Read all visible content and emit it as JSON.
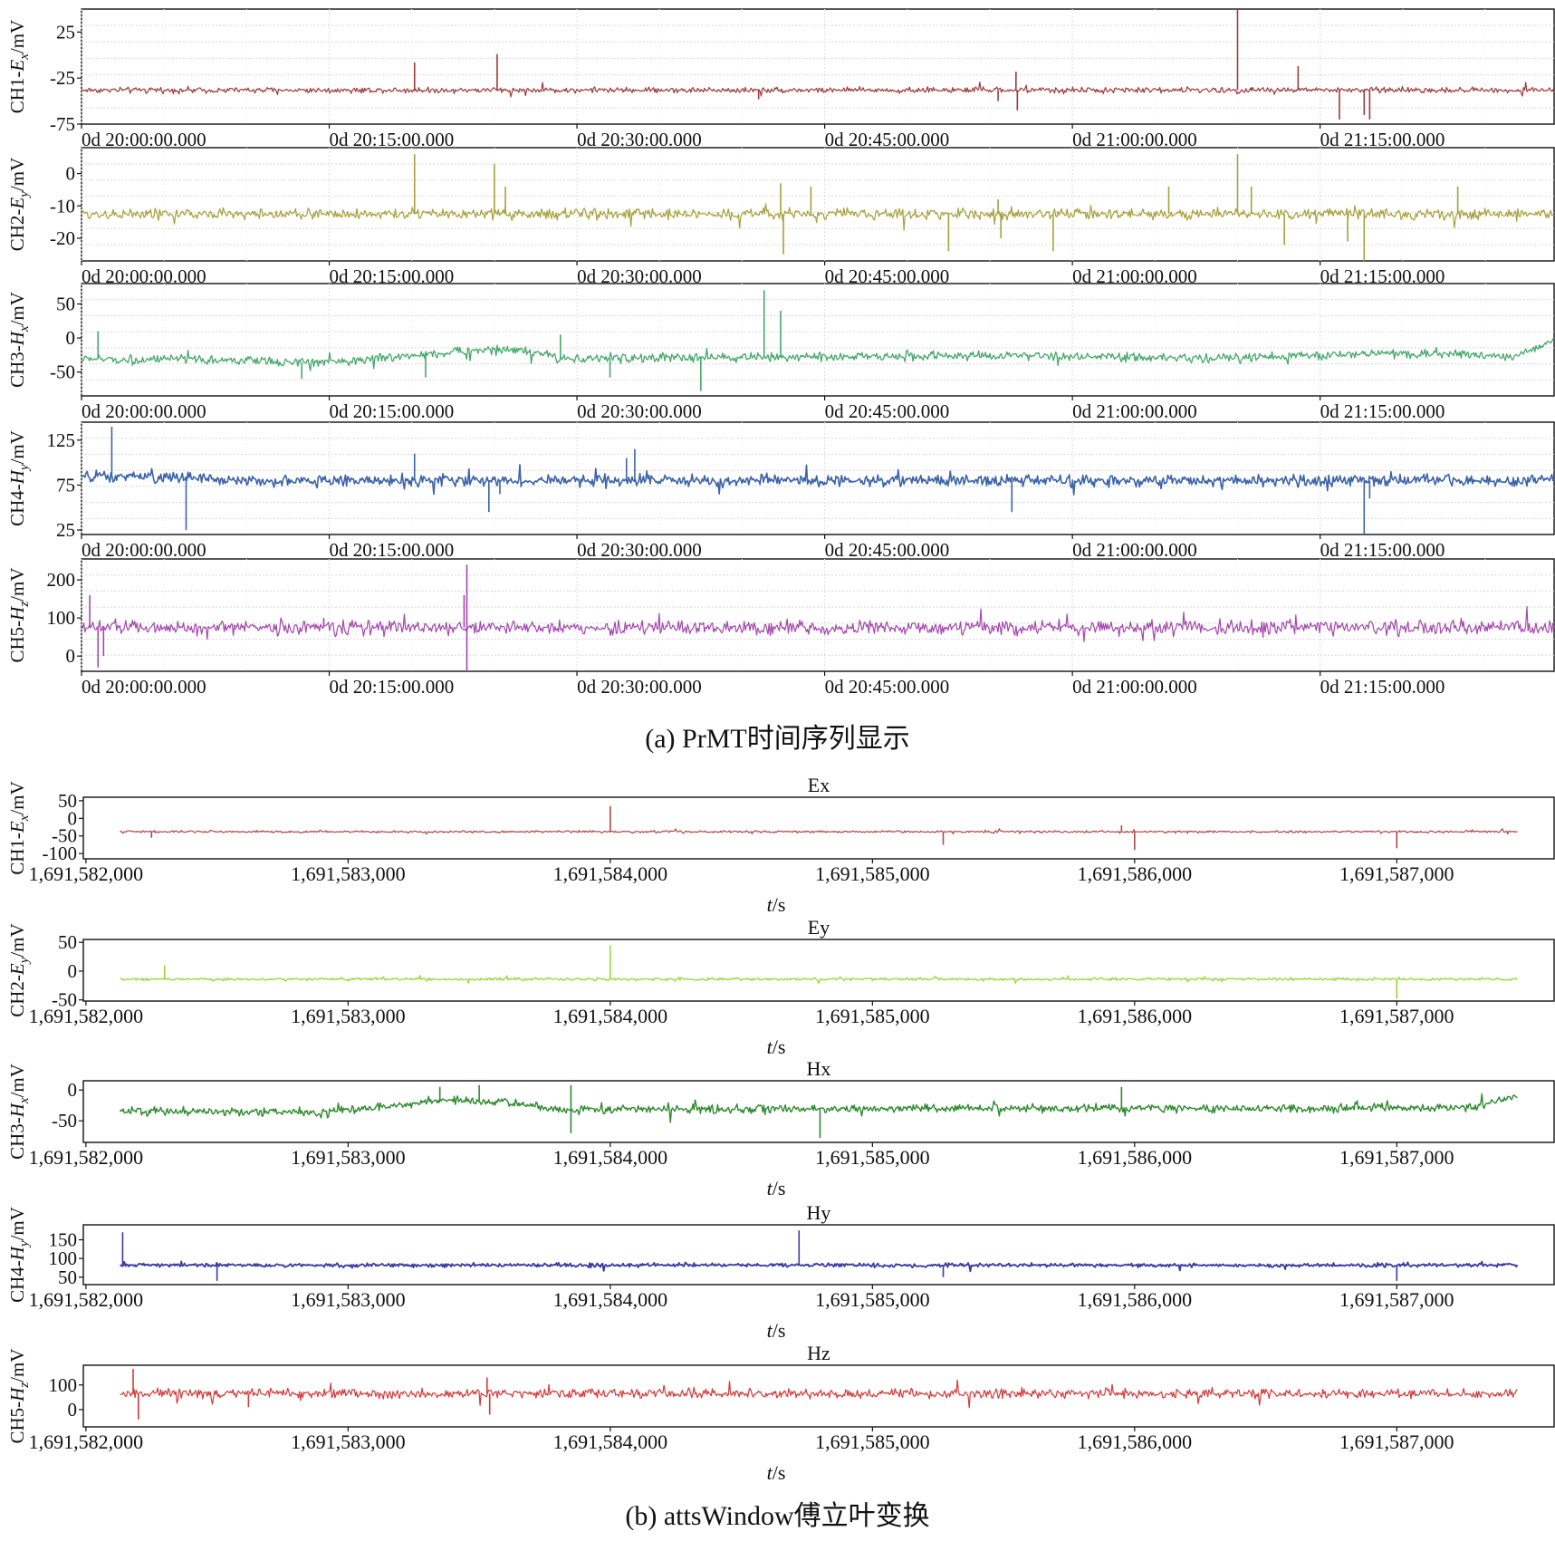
{
  "figure": {
    "caption_a": "(a) PrMT时间序列显示",
    "caption_b": "(b) attsWindow傅立叶变换"
  },
  "chart_data": [
    {
      "type": "line",
      "group": "a",
      "ylabel": "CH1-Ex/mV",
      "ylabel_parts": [
        "CH1-",
        "E",
        "x",
        "/mV"
      ],
      "title": "",
      "xlabel": "",
      "color": "#9e3a3a",
      "line_width": 1.2,
      "x_ticks": [
        "0d 20:00:00.000",
        "0d 20:15:00.000",
        "0d 20:30:00.000",
        "0d 20:45:00.000",
        "0d 21:00:00.000",
        "0d 21:15:00.000"
      ],
      "x_tick_values_s": [
        0,
        900,
        1800,
        2700,
        3600,
        4500
      ],
      "x_range_s": [
        0,
        5350
      ],
      "y_ticks": [
        25,
        -25,
        -75
      ],
      "ylim": [
        -75,
        50
      ],
      "baseline": -38,
      "noise": 1.5,
      "drift": [],
      "spikes": [
        [
          1210,
          -8
        ],
        [
          1510,
          1
        ],
        [
          1225,
          -35
        ],
        [
          3400,
          -60
        ],
        [
          3395,
          -18
        ],
        [
          3330,
          -50
        ],
        [
          4200,
          50
        ],
        [
          4250,
          -35
        ],
        [
          4420,
          -12
        ],
        [
          4570,
          -70
        ],
        [
          4660,
          -65
        ],
        [
          4680,
          -70
        ],
        [
          2460,
          -48
        ]
      ],
      "grid": true,
      "legend": "none"
    },
    {
      "type": "line",
      "group": "a",
      "ylabel": "CH2-Ey/mV",
      "ylabel_parts": [
        "CH2-",
        "E",
        "y",
        "/mV"
      ],
      "title": "",
      "xlabel": "",
      "color": "#a6a03a",
      "line_width": 1.2,
      "x_ticks": [
        "0d 20:00:00.000",
        "0d 20:15:00.000",
        "0d 20:30:00.000",
        "0d 20:45:00.000",
        "0d 21:00:00.000",
        "0d 21:15:00.000"
      ],
      "x_tick_values_s": [
        0,
        900,
        1800,
        2700,
        3600,
        4500
      ],
      "x_range_s": [
        0,
        5350
      ],
      "y_ticks": [
        0,
        -10,
        -20
      ],
      "ylim": [
        -27,
        8
      ],
      "baseline": -12.5,
      "noise": 0.8,
      "drift": [],
      "spikes": [
        [
          1210,
          6
        ],
        [
          1500,
          3
        ],
        [
          1540,
          -4
        ],
        [
          2540,
          -3
        ],
        [
          2550,
          -25
        ],
        [
          2650,
          -4
        ],
        [
          3150,
          -24
        ],
        [
          3330,
          -8
        ],
        [
          3340,
          -20
        ],
        [
          3530,
          -24
        ],
        [
          3950,
          -4
        ],
        [
          4200,
          6
        ],
        [
          4250,
          -4
        ],
        [
          4370,
          -22
        ],
        [
          4600,
          -21
        ],
        [
          4660,
          -27
        ],
        [
          5000,
          -4
        ]
      ],
      "grid": true,
      "legend": "none"
    },
    {
      "type": "line",
      "group": "a",
      "ylabel": "CH3-Hx/mV",
      "ylabel_parts": [
        "CH3-",
        "H",
        "x",
        "/mV"
      ],
      "title": "",
      "xlabel": "",
      "color": "#46a86a",
      "line_width": 1.3,
      "x_ticks": [
        "0d 20:00:00.000",
        "0d 20:15:00.000",
        "0d 20:30:00.000",
        "0d 20:45:00.000",
        "0d 21:00:00.000",
        "0d 21:15:00.000"
      ],
      "x_tick_values_s": [
        0,
        900,
        1800,
        2700,
        3600,
        4500
      ],
      "x_range_s": [
        0,
        5350
      ],
      "y_ticks": [
        50,
        0,
        -50
      ],
      "ylim": [
        -85,
        80
      ],
      "baseline": -30,
      "noise": 3.2,
      "drift": [
        [
          0,
          -30
        ],
        [
          150,
          -32
        ],
        [
          500,
          -32
        ],
        [
          800,
          -36
        ],
        [
          1000,
          -33
        ],
        [
          1300,
          -22
        ],
        [
          1550,
          -16
        ],
        [
          1650,
          -22
        ],
        [
          1750,
          -30
        ],
        [
          3200,
          -26
        ],
        [
          4100,
          -30
        ],
        [
          4800,
          -22
        ],
        [
          5200,
          -28
        ],
        [
          5350,
          -3
        ]
      ],
      "spikes": [
        [
          60,
          10
        ],
        [
          1740,
          5
        ],
        [
          2480,
          70
        ],
        [
          2540,
          40
        ],
        [
          1920,
          -58
        ],
        [
          2250,
          -78
        ],
        [
          1250,
          -58
        ],
        [
          800,
          -60
        ]
      ],
      "grid": true,
      "legend": "none"
    },
    {
      "type": "line",
      "group": "a",
      "ylabel": "CH4-Hy/mV",
      "ylabel_parts": [
        "CH4-",
        "H",
        "y",
        "/mV"
      ],
      "title": "",
      "xlabel": "",
      "color": "#3c64aa",
      "line_width": 1.6,
      "x_ticks": [
        "0d 20:00:00.000",
        "0d 20:15:00.000",
        "0d 20:30:00.000",
        "0d 20:45:00.000",
        "0d 21:00:00.000",
        "0d 21:15:00.000"
      ],
      "x_tick_values_s": [
        0,
        900,
        1800,
        2700,
        3600,
        4500
      ],
      "x_range_s": [
        0,
        5350
      ],
      "y_ticks": [
        125,
        75,
        25
      ],
      "ylim": [
        20,
        145
      ],
      "baseline": 82,
      "noise": 3.0,
      "drift": [
        [
          0,
          84
        ],
        [
          300,
          84
        ],
        [
          600,
          80
        ],
        [
          1500,
          80
        ],
        [
          5350,
          80
        ]
      ],
      "spikes": [
        [
          110,
          140
        ],
        [
          380,
          25
        ],
        [
          1210,
          110
        ],
        [
          1480,
          45
        ],
        [
          1520,
          65
        ],
        [
          1980,
          105
        ],
        [
          2010,
          115
        ],
        [
          3380,
          45
        ],
        [
          4660,
          20
        ],
        [
          4680,
          60
        ]
      ],
      "grid": true,
      "legend": "none"
    },
    {
      "type": "line",
      "group": "a",
      "ylabel": "CH5-Hz/mV",
      "ylabel_parts": [
        "CH5-",
        "H",
        "z",
        "/mV"
      ],
      "title": "",
      "xlabel": "",
      "color": "#a447ae",
      "line_width": 1.2,
      "x_ticks": [
        "0d 20:00:00.000",
        "0d 20:15:00.000",
        "0d 20:30:00.000",
        "0d 20:45:00.000",
        "0d 21:00:00.000",
        "0d 21:15:00.000"
      ],
      "x_tick_values_s": [
        0,
        900,
        1800,
        2700,
        3600,
        4500
      ],
      "x_range_s": [
        0,
        5350
      ],
      "y_ticks": [
        200,
        100,
        0
      ],
      "ylim": [
        -40,
        255
      ],
      "baseline": 75,
      "noise": 9,
      "drift": [],
      "spikes": [
        [
          30,
          160
        ],
        [
          60,
          -30
        ],
        [
          80,
          0
        ],
        [
          1400,
          240
        ],
        [
          1400,
          -40
        ],
        [
          1390,
          160
        ],
        [
          880,
          100
        ],
        [
          560,
          70
        ]
      ],
      "grid": true,
      "legend": "none"
    },
    {
      "type": "line",
      "group": "b",
      "title": "Ex",
      "ylabel": "CH1-Ex/mV",
      "ylabel_parts": [
        "CH1-",
        "E",
        "x",
        "/mV"
      ],
      "xlabel": "t/s",
      "color": "#b04848",
      "line_width": 1.2,
      "x_ticks": [
        "1,691,582,000",
        "1,691,583,000",
        "1,691,584,000",
        "1,691,585,000",
        "1,691,586,000",
        "1,691,587,000"
      ],
      "x_tick_values_s": [
        1691582000,
        1691583000,
        1691584000,
        1691585000,
        1691586000,
        1691587000
      ],
      "x_range_s": [
        1691581990,
        1691587600
      ],
      "data_range_s": [
        1691582130,
        1691587460
      ],
      "y_ticks": [
        50,
        0,
        -50,
        -100
      ],
      "ylim": [
        -115,
        60
      ],
      "baseline": -38,
      "noise": 1.5,
      "drift": [],
      "spikes": [
        [
          1691584000,
          35
        ],
        [
          1691586000,
          -90
        ],
        [
          1691587000,
          -85
        ],
        [
          1691585270,
          -75
        ],
        [
          1691585950,
          -20
        ],
        [
          1691582250,
          -55
        ]
      ],
      "grid": false,
      "legend": "none"
    },
    {
      "type": "line",
      "group": "b",
      "title": "Ey",
      "ylabel": "CH2-Ey/mV",
      "ylabel_parts": [
        "CH2-",
        "E",
        "y",
        "/mV"
      ],
      "xlabel": "t/s",
      "color": "#9ad63c",
      "line_width": 1.3,
      "x_ticks": [
        "1,691,582,000",
        "1,691,583,000",
        "1,691,584,000",
        "1,691,585,000",
        "1,691,586,000",
        "1,691,587,000"
      ],
      "x_tick_values_s": [
        1691582000,
        1691583000,
        1691584000,
        1691585000,
        1691586000,
        1691587000
      ],
      "x_range_s": [
        1691581990,
        1691587600
      ],
      "data_range_s": [
        1691582130,
        1691587460
      ],
      "y_ticks": [
        50,
        0,
        -50
      ],
      "ylim": [
        -52,
        55
      ],
      "baseline": -14,
      "noise": 1.2,
      "drift": [],
      "spikes": [
        [
          1691584000,
          45
        ],
        [
          1691587000,
          -48
        ],
        [
          1691582300,
          10
        ]
      ],
      "grid": false,
      "legend": "none"
    },
    {
      "type": "line",
      "group": "b",
      "title": "Hx",
      "ylabel": "CH3-Hx/mV",
      "ylabel_parts": [
        "CH3-",
        "H",
        "x",
        "/mV"
      ],
      "xlabel": "t/s",
      "color": "#2f8a2f",
      "line_width": 1.4,
      "x_ticks": [
        "1,691,582,000",
        "1,691,583,000",
        "1,691,584,000",
        "1,691,585,000",
        "1,691,586,000",
        "1,691,587,000"
      ],
      "x_tick_values_s": [
        1691582000,
        1691583000,
        1691584000,
        1691585000,
        1691586000,
        1691587000
      ],
      "x_range_s": [
        1691581990,
        1691587600
      ],
      "data_range_s": [
        1691582130,
        1691587460
      ],
      "y_ticks": [
        0,
        -50
      ],
      "ylim": [
        -85,
        15
      ],
      "baseline": -34,
      "noise": 3.2,
      "drift": [
        [
          1691582130,
          -34
        ],
        [
          1691582900,
          -36
        ],
        [
          1691583400,
          -16
        ],
        [
          1691583650,
          -22
        ],
        [
          1691583800,
          -32
        ],
        [
          1691585100,
          -30
        ],
        [
          1691586500,
          -30
        ],
        [
          1691587300,
          -28
        ],
        [
          1691587460,
          -8
        ]
      ],
      "spikes": [
        [
          1691583350,
          5
        ],
        [
          1691583500,
          8
        ],
        [
          1691583850,
          8
        ],
        [
          1691585950,
          5
        ],
        [
          1691584800,
          -78
        ],
        [
          1691583850,
          -70
        ]
      ],
      "grid": false,
      "legend": "none"
    },
    {
      "type": "line",
      "group": "b",
      "title": "Hy",
      "ylabel": "CH4-Hy/mV",
      "ylabel_parts": [
        "CH4-",
        "H",
        "y",
        "/mV"
      ],
      "xlabel": "t/s",
      "color": "#3a3aa2",
      "line_width": 1.8,
      "x_ticks": [
        "1,691,582,000",
        "1,691,583,000",
        "1,691,584,000",
        "1,691,585,000",
        "1,691,586,000",
        "1,691,587,000"
      ],
      "x_tick_values_s": [
        1691582000,
        1691583000,
        1691584000,
        1691585000,
        1691586000,
        1691587000
      ],
      "x_range_s": [
        1691581990,
        1691587600
      ],
      "data_range_s": [
        1691582130,
        1691587460
      ],
      "y_ticks": [
        150,
        100,
        50
      ],
      "ylim": [
        30,
        190
      ],
      "baseline": 82,
      "noise": 2.5,
      "drift": [],
      "spikes": [
        [
          1691582140,
          170
        ],
        [
          1691582500,
          40
        ],
        [
          1691584720,
          175
        ],
        [
          1691585270,
          50
        ],
        [
          1691587000,
          40
        ]
      ],
      "grid": false,
      "legend": "none"
    },
    {
      "type": "line",
      "group": "b",
      "title": "Hz",
      "ylabel": "CH5-Hz/mV",
      "ylabel_parts": [
        "CH5-",
        "H",
        "z",
        "/mV"
      ],
      "xlabel": "t/s",
      "color": "#d43a3a",
      "line_width": 1.2,
      "x_ticks": [
        "1,691,582,000",
        "1,691,583,000",
        "1,691,584,000",
        "1,691,585,000",
        "1,691,586,000",
        "1,691,587,000"
      ],
      "x_tick_values_s": [
        1691582000,
        1691583000,
        1691584000,
        1691585000,
        1691586000,
        1691587000
      ],
      "x_range_s": [
        1691581990,
        1691587600
      ],
      "data_range_s": [
        1691582130,
        1691587460
      ],
      "y_ticks": [
        100,
        0
      ],
      "ylim": [
        -70,
        180
      ],
      "baseline": 65,
      "noise": 9,
      "drift": [],
      "spikes": [
        [
          1691582180,
          165
        ],
        [
          1691582200,
          -40
        ],
        [
          1691582620,
          10
        ],
        [
          1691583530,
          130
        ],
        [
          1691583540,
          -20
        ]
      ],
      "grid": false,
      "legend": "none"
    }
  ]
}
